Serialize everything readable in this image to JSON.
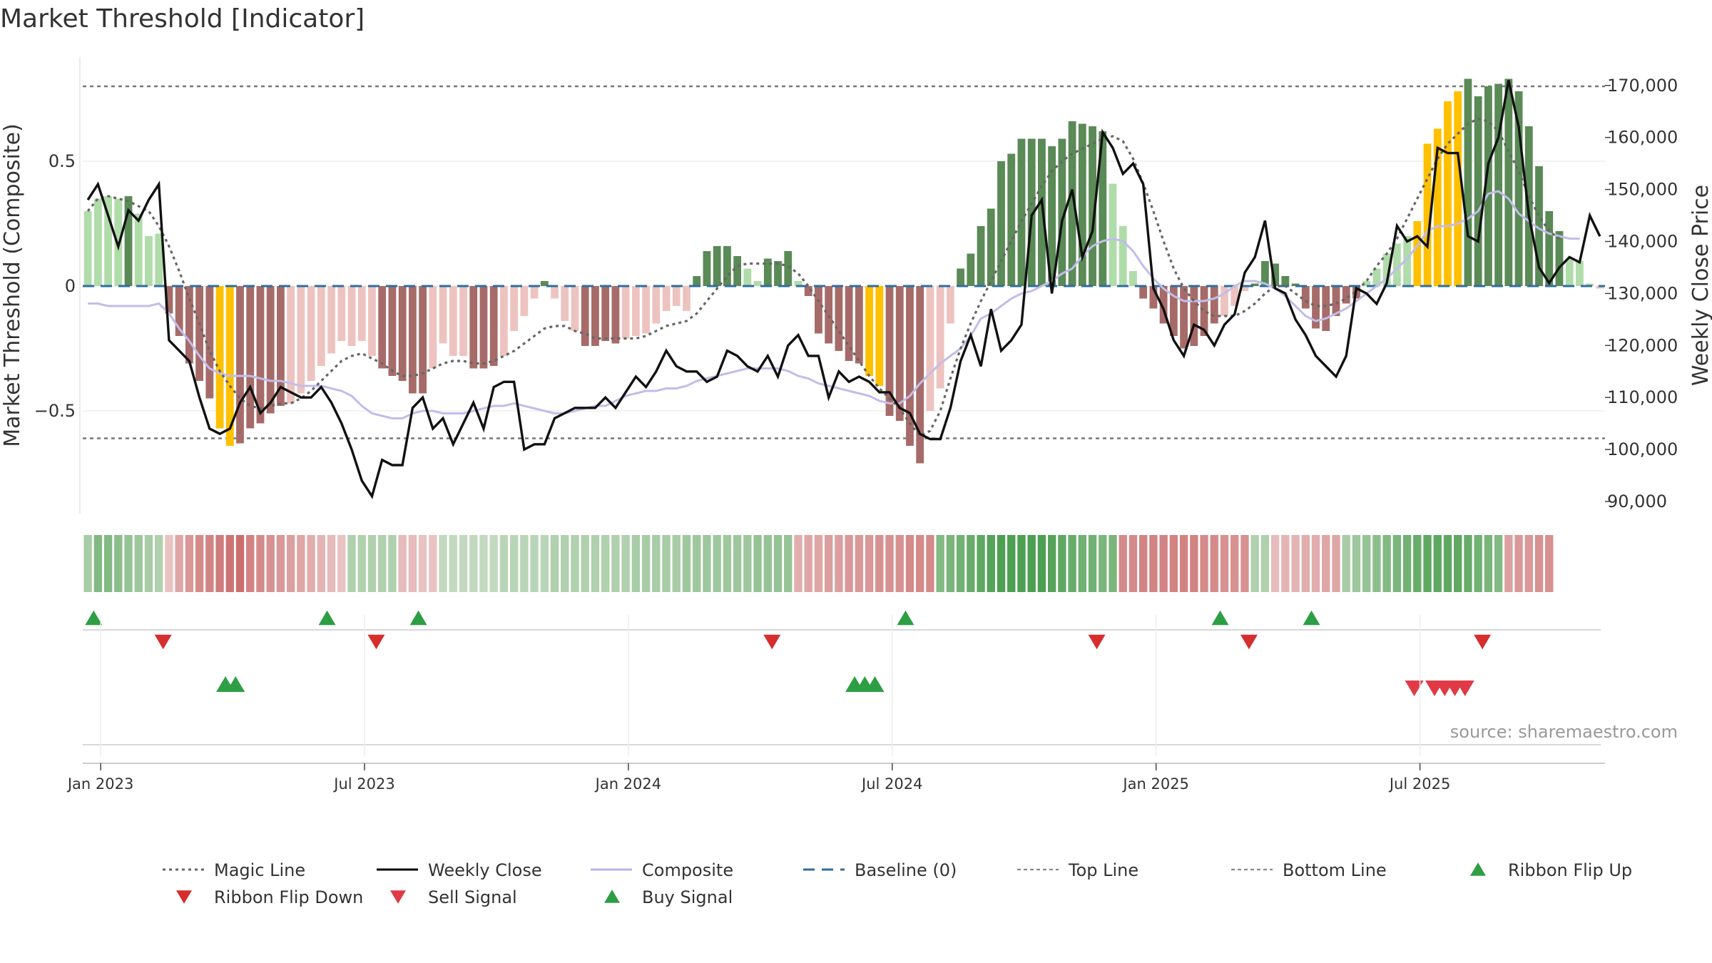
{
  "chart_data": {
    "type": "bar",
    "title": "Market Threshold [Indicator]",
    "ylabel_left": "Market Threshold (Composite)",
    "ylabel_right": "Weekly Close Price",
    "left_ticks": [
      {
        "v": 0.5,
        "label": "0.5"
      },
      {
        "v": 0,
        "label": "0"
      },
      {
        "v": -0.5,
        "label": "−0.5"
      }
    ],
    "right_ticks": [
      {
        "v": 170000,
        "label": "170,000"
      },
      {
        "v": 160000,
        "label": "160,000"
      },
      {
        "v": 150000,
        "label": "150,000"
      },
      {
        "v": 140000,
        "label": "140,000"
      },
      {
        "v": 130000,
        "label": "130,000"
      },
      {
        "v": 120000,
        "label": "120,000"
      },
      {
        "v": 110000,
        "label": "110,000"
      },
      {
        "v": 100000,
        "label": "100,000"
      },
      {
        "v": 90000,
        "label": "90,000"
      }
    ],
    "x_ticks": [
      {
        "week": 1,
        "label": "Jan 2023"
      },
      {
        "week": 27,
        "label": "Jul 2023"
      },
      {
        "week": 53,
        "label": "Jan 2024"
      },
      {
        "week": 79,
        "label": "Jul 2024"
      },
      {
        "week": 105,
        "label": "Jan 2025"
      },
      {
        "week": 131,
        "label": "Jul 2025"
      }
    ],
    "ylim_left": [
      -0.92,
      0.92
    ],
    "ylim_right": [
      87000,
      174000
    ],
    "top_line": 0.8,
    "bottom_line": -0.61,
    "baseline": 0,
    "x_start": "Dec 2022",
    "composite_bars": [
      0.3,
      0.35,
      0.36,
      0.35,
      0.36,
      0.29,
      0.2,
      0.21,
      -0.11,
      -0.2,
      -0.31,
      -0.38,
      -0.45,
      -0.57,
      -0.64,
      -0.63,
      -0.57,
      -0.55,
      -0.51,
      -0.48,
      -0.47,
      -0.43,
      -0.38,
      -0.32,
      -0.27,
      -0.22,
      -0.24,
      -0.22,
      -0.28,
      -0.33,
      -0.36,
      -0.38,
      -0.43,
      -0.43,
      -0.33,
      -0.23,
      -0.28,
      -0.28,
      -0.33,
      -0.33,
      -0.32,
      -0.28,
      -0.18,
      -0.12,
      -0.05,
      0.02,
      -0.05,
      -0.14,
      -0.18,
      -0.24,
      -0.24,
      -0.22,
      -0.23,
      -0.21,
      -0.2,
      -0.19,
      -0.15,
      -0.1,
      -0.08,
      -0.1,
      0.04,
      0.14,
      0.16,
      0.16,
      0.12,
      0.07,
      0.02,
      0.11,
      0.1,
      0.14,
      0.02,
      -0.04,
      -0.19,
      -0.23,
      -0.26,
      -0.3,
      -0.31,
      -0.36,
      -0.4,
      -0.52,
      -0.54,
      -0.64,
      -0.71,
      -0.5,
      -0.41,
      -0.15,
      0.07,
      0.13,
      0.24,
      0.31,
      0.5,
      0.53,
      0.59,
      0.59,
      0.59,
      0.56,
      0.59,
      0.66,
      0.65,
      0.64,
      0.62,
      0.41,
      0.24,
      0.06,
      -0.05,
      -0.09,
      -0.15,
      -0.2,
      -0.25,
      -0.24,
      -0.2,
      -0.15,
      -0.12,
      -0.08,
      -0.02,
      0.01,
      0.1,
      0.09,
      0.04,
      0.01,
      -0.09,
      -0.17,
      -0.18,
      -0.12,
      -0.07,
      -0.05,
      0.02,
      0.07,
      0.13,
      0.17,
      0.2,
      0.26,
      0.57,
      0.63,
      0.74,
      0.78,
      0.83,
      0.76,
      0.8,
      0.81,
      0.83,
      0.78,
      0.64,
      0.48,
      0.3,
      0.22,
      0.11,
      0.1,
      0.01,
      -0.01
    ],
    "weekly_close": [
      148000,
      151000,
      145000,
      139000,
      146000,
      144000,
      148000,
      151000,
      121000,
      119000,
      117000,
      110000,
      104000,
      103000,
      104000,
      109000,
      112000,
      107000,
      109000,
      112000,
      111000,
      110000,
      110000,
      112000,
      109000,
      105000,
      100000,
      94000,
      91000,
      98000,
      97000,
      97000,
      108000,
      110000,
      104000,
      106000,
      101000,
      105000,
      109000,
      104000,
      112000,
      113000,
      113000,
      100000,
      101000,
      101000,
      106000,
      107000,
      108000,
      108000,
      108000,
      110000,
      108000,
      111000,
      114000,
      112000,
      115000,
      119000,
      116000,
      115000,
      115000,
      113000,
      114000,
      119000,
      118000,
      116000,
      115000,
      118000,
      114000,
      120000,
      122000,
      118000,
      118000,
      110000,
      115000,
      113000,
      114000,
      113000,
      111000,
      111000,
      108000,
      107000,
      103000,
      102000,
      102000,
      108000,
      117000,
      122000,
      116000,
      127000,
      119000,
      121000,
      124000,
      145000,
      148000,
      130000,
      144000,
      150000,
      137000,
      142000,
      161000,
      158000,
      153000,
      155000,
      151000,
      131000,
      127000,
      121000,
      118000,
      124000,
      123000,
      120000,
      124000,
      126000,
      134000,
      137000,
      144000,
      131000,
      130000,
      125000,
      122000,
      118000,
      116000,
      114000,
      118000,
      131000,
      130000,
      128000,
      132000,
      143000,
      140000,
      141000,
      139000,
      158000,
      157000,
      157000,
      141000,
      140000,
      155000,
      160000,
      171000,
      162000,
      145000,
      135000,
      132000,
      135000,
      137000,
      136000,
      145000,
      141000
    ],
    "composite_line": [
      -0.07,
      -0.07,
      -0.08,
      -0.08,
      -0.08,
      -0.08,
      -0.08,
      -0.07,
      -0.11,
      -0.17,
      -0.22,
      -0.28,
      -0.33,
      -0.35,
      -0.36,
      -0.36,
      -0.36,
      -0.37,
      -0.38,
      -0.38,
      -0.39,
      -0.4,
      -0.4,
      -0.4,
      -0.41,
      -0.42,
      -0.44,
      -0.48,
      -0.51,
      -0.52,
      -0.53,
      -0.53,
      -0.51,
      -0.5,
      -0.5,
      -0.51,
      -0.51,
      -0.51,
      -0.5,
      -0.49,
      -0.48,
      -0.48,
      -0.47,
      -0.48,
      -0.49,
      -0.5,
      -0.51,
      -0.51,
      -0.5,
      -0.49,
      -0.48,
      -0.48,
      -0.46,
      -0.44,
      -0.43,
      -0.42,
      -0.42,
      -0.41,
      -0.41,
      -0.4,
      -0.38,
      -0.37,
      -0.36,
      -0.35,
      -0.34,
      -0.33,
      -0.33,
      -0.33,
      -0.33,
      -0.34,
      -0.36,
      -0.37,
      -0.39,
      -0.4,
      -0.41,
      -0.42,
      -0.43,
      -0.44,
      -0.46,
      -0.47,
      -0.47,
      -0.44,
      -0.39,
      -0.35,
      -0.31,
      -0.28,
      -0.25,
      -0.2,
      -0.13,
      -0.11,
      -0.08,
      -0.05,
      -0.03,
      -0.02,
      0.0,
      0.02,
      0.05,
      0.07,
      0.12,
      0.16,
      0.18,
      0.19,
      0.18,
      0.14,
      0.08,
      0.03,
      -0.01,
      -0.04,
      -0.06,
      -0.06,
      -0.06,
      -0.05,
      -0.03,
      0.0,
      0.02,
      0.02,
      0.01,
      -0.01,
      -0.04,
      -0.08,
      -0.12,
      -0.14,
      -0.13,
      -0.11,
      -0.09,
      -0.06,
      -0.03,
      0.0,
      0.03,
      0.07,
      0.11,
      0.16,
      0.22,
      0.24,
      0.24,
      0.25,
      0.27,
      0.3,
      0.37,
      0.38,
      0.35,
      0.29,
      0.26,
      0.23,
      0.21,
      0.2,
      0.19,
      0.19
    ],
    "magic_line": [
      0.3,
      0.35,
      0.36,
      0.35,
      0.34,
      0.32,
      0.3,
      0.24,
      0.16,
      0.06,
      -0.05,
      -0.15,
      -0.26,
      -0.34,
      -0.4,
      -0.45,
      -0.48,
      -0.49,
      -0.48,
      -0.47,
      -0.47,
      -0.45,
      -0.42,
      -0.38,
      -0.34,
      -0.3,
      -0.28,
      -0.27,
      -0.29,
      -0.31,
      -0.34,
      -0.36,
      -0.36,
      -0.35,
      -0.33,
      -0.31,
      -0.3,
      -0.3,
      -0.31,
      -0.31,
      -0.3,
      -0.28,
      -0.26,
      -0.23,
      -0.2,
      -0.17,
      -0.16,
      -0.16,
      -0.18,
      -0.19,
      -0.21,
      -0.21,
      -0.21,
      -0.21,
      -0.21,
      -0.2,
      -0.18,
      -0.16,
      -0.15,
      -0.14,
      -0.11,
      -0.06,
      -0.01,
      0.04,
      0.08,
      0.09,
      0.09,
      0.09,
      0.09,
      0.08,
      0.05,
      0.0,
      -0.06,
      -0.12,
      -0.18,
      -0.24,
      -0.3,
      -0.36,
      -0.41,
      -0.45,
      -0.49,
      -0.55,
      -0.6,
      -0.58,
      -0.5,
      -0.37,
      -0.25,
      -0.15,
      -0.06,
      0.02,
      0.1,
      0.18,
      0.26,
      0.33,
      0.4,
      0.46,
      0.5,
      0.53,
      0.55,
      0.57,
      0.59,
      0.6,
      0.58,
      0.51,
      0.41,
      0.3,
      0.18,
      0.07,
      -0.01,
      -0.06,
      -0.1,
      -0.12,
      -0.12,
      -0.12,
      -0.1,
      -0.07,
      -0.03,
      0.0,
      0.0,
      -0.03,
      -0.06,
      -0.08,
      -0.08,
      -0.07,
      -0.05,
      -0.02,
      0.02,
      0.08,
      0.13,
      0.19,
      0.27,
      0.35,
      0.43,
      0.51,
      0.57,
      0.61,
      0.65,
      0.67,
      0.66,
      0.62,
      0.54,
      0.46,
      0.36,
      0.28,
      0.22,
      0.19
    ],
    "ribbon": [
      0.35,
      0.55,
      0.55,
      0.5,
      0.45,
      0.4,
      0.35,
      0.3,
      -0.15,
      -0.35,
      -0.45,
      -0.55,
      -0.6,
      -0.65,
      -0.7,
      -0.75,
      -0.6,
      -0.55,
      -0.5,
      -0.45,
      -0.4,
      -0.35,
      -0.3,
      -0.25,
      -0.2,
      -0.15,
      0.3,
      0.3,
      0.3,
      0.3,
      0.3,
      -0.2,
      -0.2,
      -0.15,
      -0.15,
      0.2,
      0.2,
      0.2,
      0.2,
      0.2,
      0.2,
      0.25,
      0.25,
      0.25,
      0.25,
      0.25,
      0.3,
      0.3,
      0.3,
      0.3,
      0.3,
      0.3,
      0.3,
      0.3,
      0.35,
      0.35,
      0.35,
      0.35,
      0.35,
      0.4,
      0.4,
      0.4,
      0.4,
      0.4,
      0.4,
      0.4,
      0.45,
      0.45,
      0.45,
      0.45,
      -0.3,
      -0.35,
      -0.35,
      -0.4,
      -0.4,
      -0.45,
      -0.45,
      -0.45,
      -0.5,
      -0.5,
      -0.5,
      -0.55,
      -0.55,
      -0.55,
      0.55,
      0.6,
      0.65,
      0.7,
      0.75,
      0.8,
      0.85,
      0.85,
      0.85,
      0.85,
      0.85,
      0.8,
      0.75,
      0.7,
      0.65,
      0.65,
      0.6,
      0.6,
      -0.55,
      -0.55,
      -0.6,
      -0.6,
      -0.6,
      -0.6,
      -0.6,
      -0.6,
      -0.55,
      -0.55,
      -0.5,
      -0.5,
      -0.5,
      0.3,
      0.3,
      -0.2,
      -0.25,
      -0.25,
      -0.3,
      -0.3,
      -0.35,
      -0.35,
      0.35,
      0.4,
      0.45,
      0.5,
      0.55,
      0.6,
      0.65,
      0.7,
      0.75,
      0.75,
      0.75,
      0.75,
      0.7,
      0.65,
      0.6,
      0.55,
      -0.4,
      -0.45,
      -0.45,
      -0.5,
      -0.5
    ],
    "ribbon_flip_up_weeks": [
      2,
      25,
      34,
      82,
      113,
      122
    ],
    "ribbon_flip_down_weeks": [
      8,
      29,
      68,
      100,
      115,
      138
    ],
    "buy_signal_weeks": [
      14,
      15,
      76,
      77,
      78
    ],
    "sell_signal_weeks": [
      131,
      133,
      134,
      135,
      136
    ],
    "gold_bar_weeks": [
      14,
      15,
      78,
      79,
      132,
      133,
      134,
      135,
      136
    ],
    "legend_placement": "bottom"
  },
  "source_note": "source: sharemaestro.com",
  "legend": [
    {
      "label": "Magic Line",
      "kind": "dotted",
      "color": "#666666"
    },
    {
      "label": "Weekly Close",
      "kind": "solid",
      "color": "#000000"
    },
    {
      "label": "Composite",
      "kind": "solid",
      "color": "#b9b3e6"
    },
    {
      "label": "Baseline (0)",
      "kind": "dashed",
      "color": "#2e6e9e"
    },
    {
      "label": "Top Line",
      "kind": "dashed-thin",
      "color": "#888888"
    },
    {
      "label": "Bottom Line",
      "kind": "dashed-thin",
      "color": "#888888"
    },
    {
      "label": "Ribbon Flip Up",
      "kind": "tri-up",
      "color": "#2e9e44"
    },
    {
      "label": "Ribbon Flip Down",
      "kind": "tri-down",
      "color": "#d62d2d"
    },
    {
      "label": "Sell Signal",
      "kind": "tri-down",
      "color": "#e03a47"
    },
    {
      "label": "Buy Signal",
      "kind": "tri-up",
      "color": "#2e9e44"
    }
  ],
  "colors": {
    "pos_dark": "#5a8a56",
    "pos_light": "#b0dcaa",
    "neg_dark": "#a66b68",
    "neg_light": "#edc3c0",
    "gold": "#ffc000",
    "ribbon_green": "#3aa349",
    "ribbon_red": "#c95a5a"
  }
}
